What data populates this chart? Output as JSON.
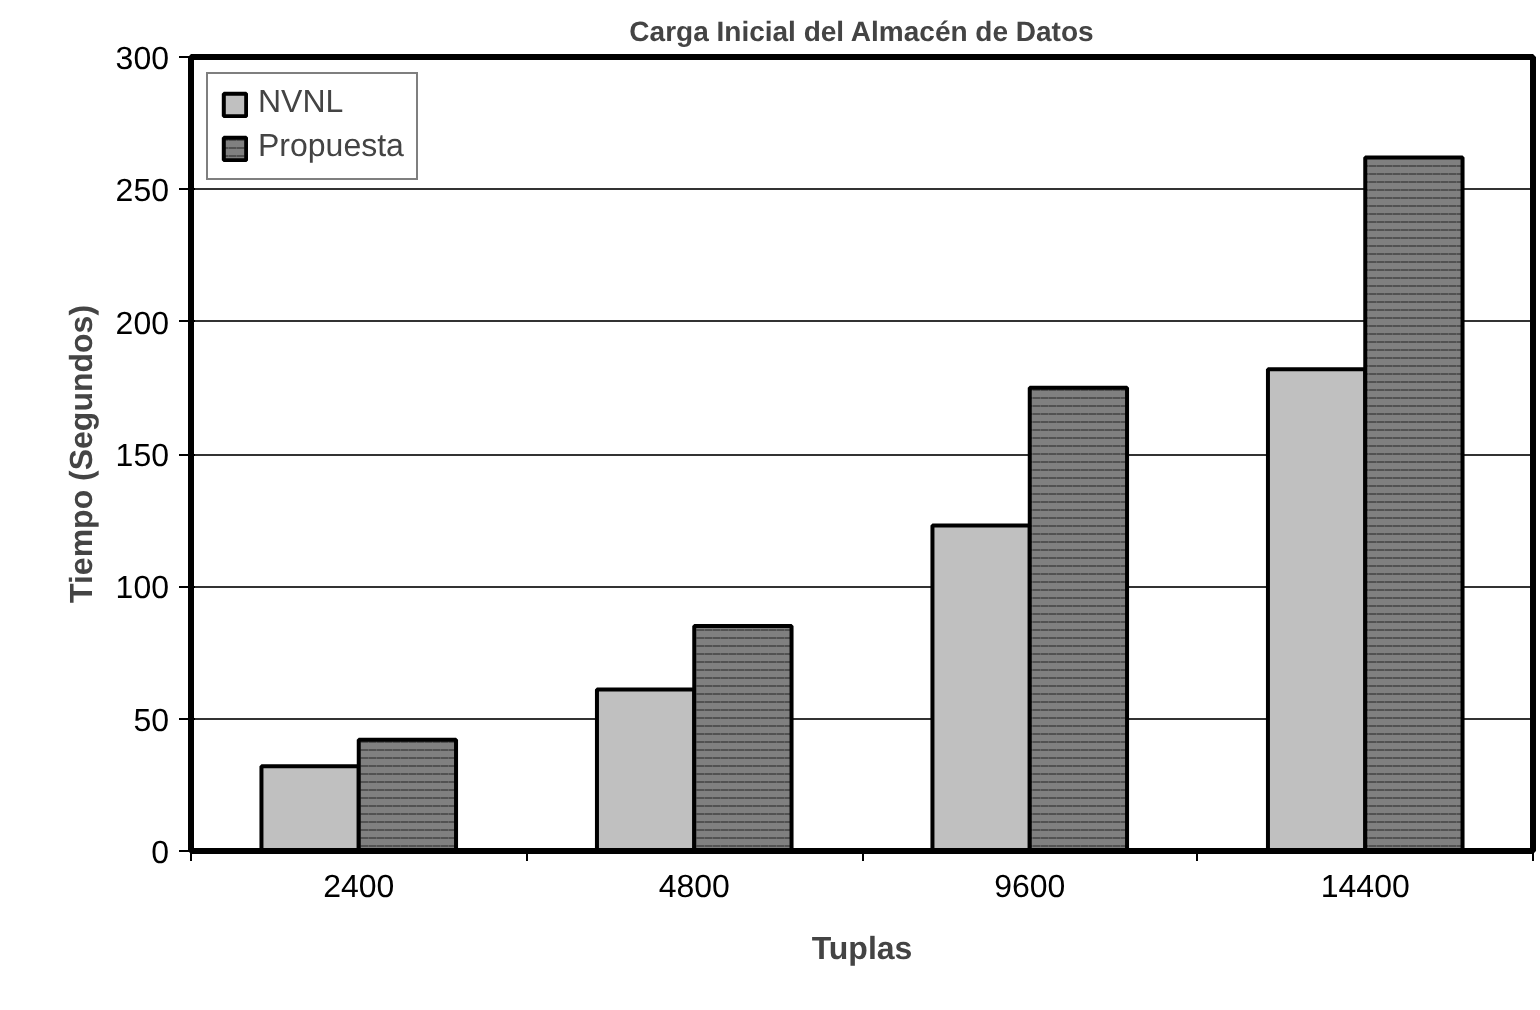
{
  "chart_data": {
    "type": "bar",
    "title": "Carga Inicial del Almacén de Datos",
    "xlabel": "Tuplas",
    "ylabel": "Tiempo (Segundos)",
    "categories": [
      "2400",
      "4800",
      "9600",
      "14400"
    ],
    "series": [
      {
        "name": "NVNL",
        "color": "#c0c0c0",
        "values": [
          32,
          61,
          123,
          182
        ]
      },
      {
        "name": "Propuesta",
        "color": "#808080",
        "values": [
          42,
          85,
          175,
          262
        ]
      }
    ],
    "ylim": [
      0,
      300
    ],
    "yticks": [
      0,
      50,
      100,
      150,
      200,
      250,
      300
    ],
    "grid": "y",
    "legend": "top left"
  }
}
